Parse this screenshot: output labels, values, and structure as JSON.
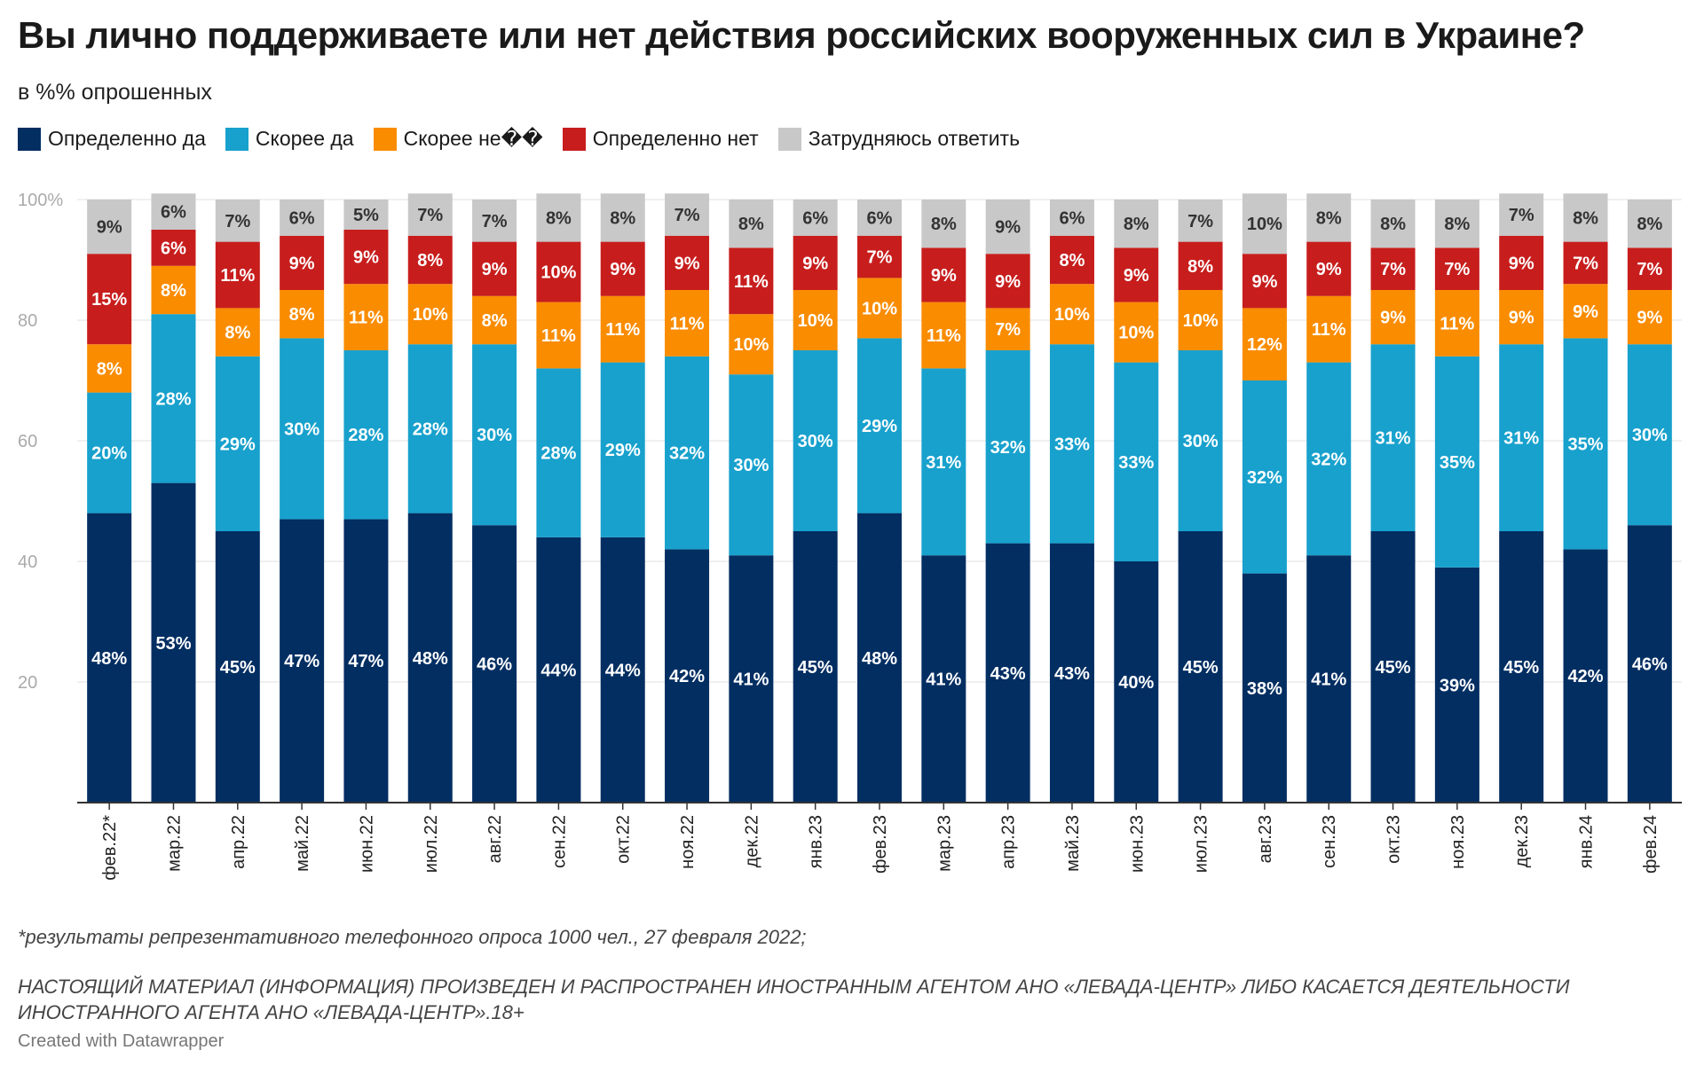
{
  "chart_data": {
    "type": "bar",
    "stacked": true,
    "title": "Вы лично поддерживаете или нет действия российских вооруженных сил в Украине?",
    "subtitle": "в %% опрошенных",
    "ylim": [
      0,
      100
    ],
    "yticks": [
      20,
      40,
      60,
      80,
      100
    ],
    "ytick_labels": [
      "20",
      "40",
      "60",
      "80",
      "100%"
    ],
    "legend_position": "top-left",
    "categories": [
      "фев.22*",
      "мар.22",
      "апр.22",
      "май.22",
      "июн.22",
      "июл.22",
      "авг.22",
      "сен.22",
      "окт.22",
      "ноя.22",
      "дек.22",
      "янв.23",
      "фев.23",
      "мар.23",
      "апр.23",
      "май.23",
      "июн.23",
      "июл.23",
      "авг.23",
      "сен.23",
      "окт.23",
      "ноя.23",
      "дек.23",
      "янв.24",
      "фев.24"
    ],
    "series": [
      {
        "name": "Определенно да",
        "color": "#022e62",
        "label_color": "#ffffff",
        "values": [
          48,
          53,
          45,
          47,
          47,
          48,
          46,
          44,
          44,
          42,
          41,
          45,
          48,
          41,
          43,
          43,
          40,
          45,
          38,
          41,
          45,
          39,
          45,
          42,
          46
        ]
      },
      {
        "name": "Скорее да",
        "color": "#18a1cd",
        "label_color": "#ffffff",
        "values": [
          20,
          28,
          29,
          30,
          28,
          28,
          30,
          28,
          29,
          32,
          30,
          30,
          29,
          31,
          32,
          33,
          33,
          30,
          32,
          32,
          31,
          35,
          31,
          35,
          30
        ]
      },
      {
        "name": "Скорее не��",
        "color": "#fa8c00",
        "label_color": "#ffffff",
        "values": [
          8,
          8,
          8,
          8,
          11,
          10,
          8,
          11,
          11,
          11,
          10,
          10,
          10,
          11,
          7,
          10,
          10,
          10,
          12,
          11,
          9,
          11,
          9,
          9,
          9
        ]
      },
      {
        "name": "Определенно нет",
        "color": "#c71e1d",
        "label_color": "#ffffff",
        "values": [
          15,
          6,
          11,
          9,
          9,
          8,
          9,
          10,
          9,
          9,
          11,
          9,
          7,
          9,
          9,
          8,
          9,
          8,
          9,
          9,
          7,
          7,
          9,
          7,
          7
        ]
      },
      {
        "name": "Затрудняюсь ответить",
        "color": "#c8c8c8",
        "label_color": "#333333",
        "values": [
          9,
          6,
          7,
          6,
          5,
          7,
          7,
          8,
          8,
          7,
          8,
          6,
          6,
          8,
          9,
          6,
          8,
          7,
          10,
          8,
          8,
          8,
          7,
          8,
          8
        ]
      }
    ]
  },
  "footnote": "*результаты репрезентативного телефонного опроса 1000 чел., 27 февраля 2022;",
  "disclaimer": "НАСТОЯЩИЙ МАТЕРИАЛ (ИНФОРМАЦИЯ) ПРОИЗВЕДЕН И РАСПРОСТРАНЕН ИНОСТРАННЫМ АГЕНТОМ АНО «ЛЕВАДА-ЦЕНТР» ЛИБО КАСАЕТСЯ ДЕЯТЕЛЬНОСТИ ИНОСТРАННОГО АГЕНТА АНО «ЛЕВАДА-ЦЕНТР».18+",
  "credit": "Created with Datawrapper"
}
